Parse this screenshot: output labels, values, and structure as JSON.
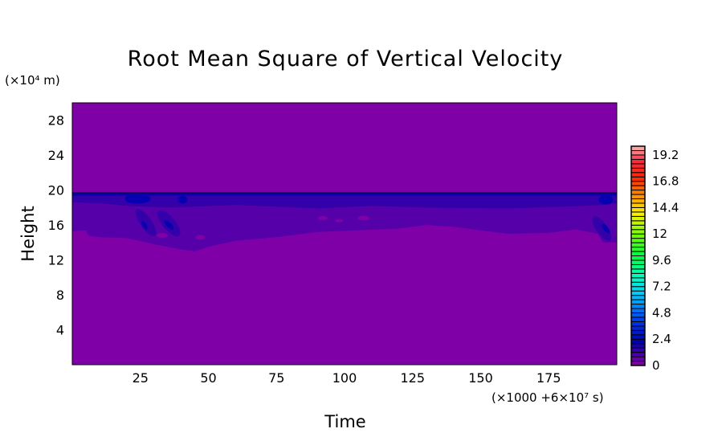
{
  "chart_data": {
    "type": "heatmap",
    "subtype": "filled-contour",
    "title": "Root Mean Square of Vertical Velocity",
    "xlabel": "Time",
    "x_unit_label": "(×1000 +6×10⁷ s)",
    "ylabel": "Height",
    "y_unit_label": "(×10⁴ m)",
    "xlim": [
      0,
      200
    ],
    "ylim": [
      0,
      30
    ],
    "x_ticks": [
      25,
      50,
      75,
      100,
      125,
      150,
      175
    ],
    "y_ticks": [
      4,
      8,
      12,
      16,
      20,
      24,
      28
    ],
    "grid": false,
    "colorbar": {
      "min": 0,
      "max": 20,
      "step": 0.4,
      "labels": [
        "0",
        "2.4",
        "4.8",
        "7.2",
        "9.6",
        "12",
        "14.4",
        "16.8",
        "19.2"
      ],
      "label_values": [
        0,
        2.4,
        4.8,
        7.2,
        9.6,
        12,
        14.4,
        16.8,
        19.2
      ],
      "colormap": "rainbow (purple → blue → cyan → green → yellow → orange → red → pink)",
      "placement": "right"
    },
    "field_summary": {
      "background_level_color": "#8000A8",
      "layer_heights": [
        13,
        19.7
      ],
      "max_levels_in_field": 3
    },
    "level_colors": [
      "#8000A8",
      "#5500A8",
      "#3300AA",
      "#0800B0"
    ]
  }
}
